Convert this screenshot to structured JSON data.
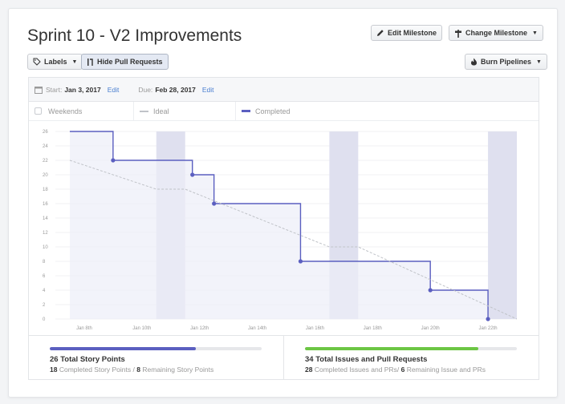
{
  "milestone": {
    "title": "Sprint 10 - V2 Improvements"
  },
  "toolbar": {
    "edit_milestone": "Edit Milestone",
    "change_milestone": "Change Milestone",
    "labels": "Labels",
    "hide_pull_requests": "Hide Pull Requests",
    "burn_pipelines": "Burn Pipelines"
  },
  "dates": {
    "start_label": "Start:",
    "start_value": "Jan 3, 2017",
    "start_edit": "Edit",
    "due_label": "Due:",
    "due_value": "Feb 28, 2017",
    "due_edit": "Edit"
  },
  "legend": {
    "weekends": "Weekends",
    "ideal": "Ideal",
    "completed": "Completed"
  },
  "colors": {
    "completed": "#5b5fc0",
    "ideal": "#c0c3c8",
    "weekend": "#dfe0ef",
    "area": "#eceef8",
    "issues_bar": "#6cc644"
  },
  "chart_data": {
    "type": "line",
    "ylim": [
      0,
      26
    ],
    "y_ticks": [
      0,
      2,
      4,
      6,
      8,
      10,
      12,
      14,
      16,
      18,
      20,
      22,
      24,
      26
    ],
    "x_range": [
      "2017-01-07",
      "2017-01-23"
    ],
    "x_ticks": [
      {
        "label": "Jan 8th",
        "date": "2017-01-08"
      },
      {
        "label": "Jan 10th",
        "date": "2017-01-10"
      },
      {
        "label": "Jan 12th",
        "date": "2017-01-12"
      },
      {
        "label": "Jan 14th",
        "date": "2017-01-14"
      },
      {
        "label": "Jan 16th",
        "date": "2017-01-16"
      },
      {
        "label": "Jan 18th",
        "date": "2017-01-18"
      },
      {
        "label": "Jan 20th",
        "date": "2017-01-20"
      },
      {
        "label": "Jan 22th",
        "date": "2017-01-22"
      }
    ],
    "weekends": [
      [
        "2017-01-10T12:00",
        "2017-01-11T12:00"
      ],
      [
        "2017-01-16T12:00",
        "2017-01-17T12:00"
      ],
      [
        "2017-01-22T00:00",
        "2017-01-23T00:00"
      ]
    ],
    "ideal": [
      {
        "date": "2017-01-07T12:00",
        "y": 22
      },
      {
        "date": "2017-01-10T12:00",
        "y": 18
      },
      {
        "date": "2017-01-11T12:00",
        "y": 18
      },
      {
        "date": "2017-01-16T12:00",
        "y": 10
      },
      {
        "date": "2017-01-17T12:00",
        "y": 10
      },
      {
        "date": "2017-01-23T00:00",
        "y": 0
      }
    ],
    "completed": [
      {
        "date": "2017-01-07T12:00",
        "y": 26,
        "marker": false
      },
      {
        "date": "2017-01-09T00:00",
        "y": 22,
        "marker": true
      },
      {
        "date": "2017-01-11T18:00",
        "y": 20,
        "marker": true
      },
      {
        "date": "2017-01-12T12:00",
        "y": 16,
        "marker": true
      },
      {
        "date": "2017-01-15T12:00",
        "y": 8,
        "marker": true
      },
      {
        "date": "2017-01-20T00:00",
        "y": 4,
        "marker": true
      },
      {
        "date": "2017-01-22T00:00",
        "y": 0,
        "marker": true
      }
    ]
  },
  "stats": {
    "story_points": {
      "title": "26 Total Story Points",
      "completed_value": "18",
      "completed_label": "Completed Story Points",
      "separator": "/",
      "remaining_value": "8",
      "remaining_label": "Remaining Story Points",
      "progress": 0.69
    },
    "issues": {
      "title": "34 Total Issues and Pull Requests",
      "completed_value": "28",
      "completed_label": "Completed Issues and PRs/",
      "remaining_value": "6",
      "remaining_label": "Remaining Issue and PRs",
      "progress": 0.82
    }
  }
}
